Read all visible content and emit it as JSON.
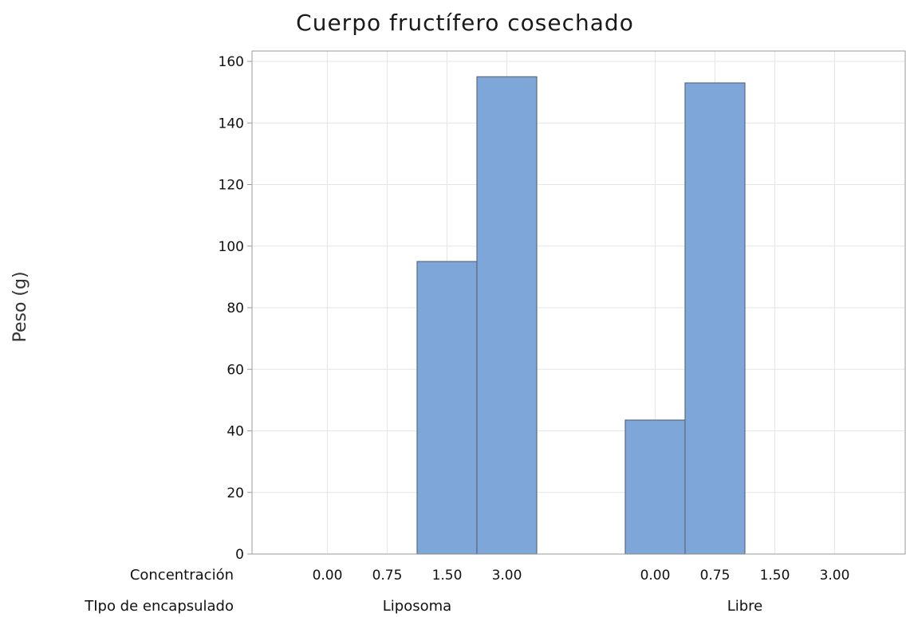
{
  "chart_data": {
    "type": "bar",
    "title": "Cuerpo fructífero cosechado",
    "ylabel": "Peso (g)",
    "ylim": [
      0,
      160
    ],
    "yticks": [
      0,
      20,
      40,
      60,
      80,
      100,
      120,
      140,
      160
    ],
    "grid": true,
    "bar_color": "#7ea6d8",
    "row_labels": {
      "inner": "Concentración",
      "outer": "TIpo de encapsulado"
    },
    "groups": [
      {
        "name": "Liposoma",
        "categories": [
          "0.00",
          "0.75",
          "1.50",
          "3.00"
        ],
        "values": [
          0,
          0,
          95,
          155
        ]
      },
      {
        "name": "Libre",
        "categories": [
          "0.00",
          "0.75",
          "1.50",
          "3.00"
        ],
        "values": [
          43.5,
          153,
          0,
          0
        ]
      }
    ]
  }
}
